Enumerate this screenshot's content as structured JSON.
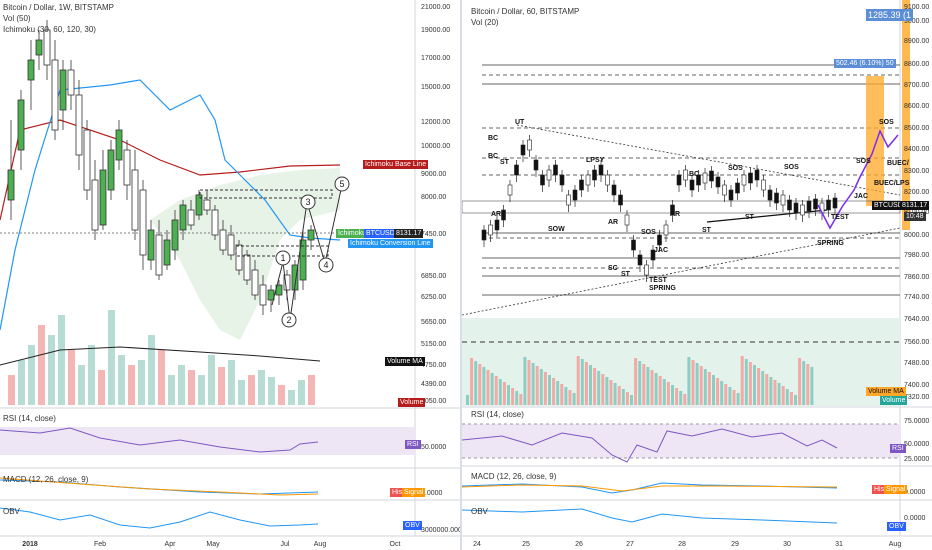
{
  "left": {
    "title": "Bitcoin / Dollar, 1W, BITSTAMP",
    "vol": "Vol (50)",
    "ichimoku": "Ichimoku (30, 60, 120, 30)",
    "price_ticks": [
      "21000.00",
      "19000.00",
      "17000.00",
      "15000.00",
      "12000.00",
      "10000.00",
      "9000.00",
      "8000.00",
      "7450.00",
      "6850.00",
      "6250.00",
      "5650.00",
      "5150.00",
      "4750.00",
      "4390.00",
      "4050.00"
    ],
    "time_ticks": [
      "2018",
      "Feb",
      "Apr",
      "May",
      "Jul",
      "Aug",
      "Oct"
    ],
    "labels": {
      "base_line": "Ichimoku Base Line",
      "lagging": "Ichimoku Lag",
      "btcusd": "BTCUSD",
      "price": "8131.17",
      "conversion": "Ichimoku Conversion Line",
      "volume_ma": "Volume MA",
      "volume": "Volume"
    },
    "waves": [
      "1",
      "2",
      "3",
      "4",
      "5"
    ],
    "rsi": {
      "title": "RSI (14, close)",
      "tag": "RSI",
      "tick": "50.0000"
    },
    "macd": {
      "title": "MACD (12, 26, close, 9)",
      "hist": "Hist",
      "signal": "Signal",
      "tick": "0.0000"
    },
    "obv": {
      "title": "OBV",
      "tag": "OBV",
      "tick": "3000000.0000"
    }
  },
  "right": {
    "title": "Bitcoin / Dollar, 60, BITSTAMP",
    "vol": "Vol (20)",
    "price_ticks": [
      "9100.00",
      "9000.00",
      "8900.00",
      "8800.00",
      "8700.00",
      "8600.00",
      "8500.00",
      "8400.00",
      "8300.00",
      "8200.00",
      "8100.00",
      "8000.00",
      "7980.00",
      "7860.00",
      "7740.00",
      "7640.00",
      "7560.00",
      "7480.00",
      "7400.00",
      "7320.00"
    ],
    "time_ticks": [
      "24",
      "25",
      "26",
      "27",
      "28",
      "29",
      "30",
      "31",
      "Aug"
    ],
    "labels": {
      "measure": "1285.39 (1",
      "range": "502.46 (6.10%) 50",
      "btcusd": "BTCUSD",
      "price": "8131.17",
      "countdown": "10:48",
      "volume_ma": "Volume MA",
      "volume": "Volume"
    },
    "wyckoff": [
      "UT",
      "BC",
      "BC",
      "ST",
      "AR",
      "SOW",
      "LPSY",
      "AR",
      "SC",
      "ST",
      "SOS",
      "JAC",
      "TEST",
      "SPRING",
      "BC",
      "AR",
      "ST",
      "SOS",
      "SOS",
      "ST",
      "TEST",
      "SPRING",
      "JAC",
      "SOS",
      "SOS",
      "BUEC/LPS",
      "BUEC/"
    ],
    "rsi": {
      "title": "RSI (14, close)",
      "tag": "RSI",
      "ticks": [
        "75.0000",
        "50.0000",
        "25.0000"
      ]
    },
    "macd": {
      "title": "MACD (12, 26, close, 9)",
      "hist": "Hist",
      "signal": "Signal",
      "tick": "0.0000"
    },
    "obv": {
      "title": "OBV",
      "tag": "OBV",
      "tick": "0.0000"
    }
  },
  "colors": {
    "up": "#26a69a",
    "down": "#ef5350",
    "bull_candle": "#4caf50",
    "base_line": "#b71c1c",
    "conversion": "#2196f3",
    "rsi": "#7e57c2",
    "macd": "#2196f3",
    "signal": "#ff9800",
    "orange": "#ffa726",
    "measure": "#5b8ed6"
  }
}
